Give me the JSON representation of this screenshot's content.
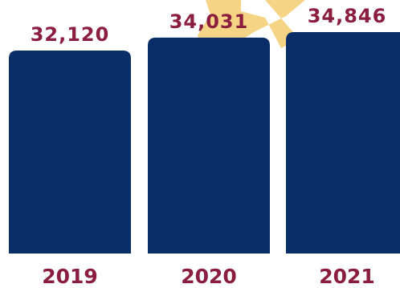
{
  "chart_data": {
    "type": "bar",
    "categories": [
      "2019",
      "2020",
      "2021"
    ],
    "values": [
      32120,
      34031,
      34846
    ],
    "value_labels": [
      "32,120",
      "34,031",
      "34,846"
    ],
    "title": "",
    "xlabel": "",
    "ylabel": "",
    "grid": false,
    "legend": "none"
  },
  "colors": {
    "bar": "#0a2f68",
    "value_text": "#8b1e3f",
    "category_text": "#8b1e3f",
    "accent_burst": "#f5d486",
    "background": "#ffffff"
  }
}
